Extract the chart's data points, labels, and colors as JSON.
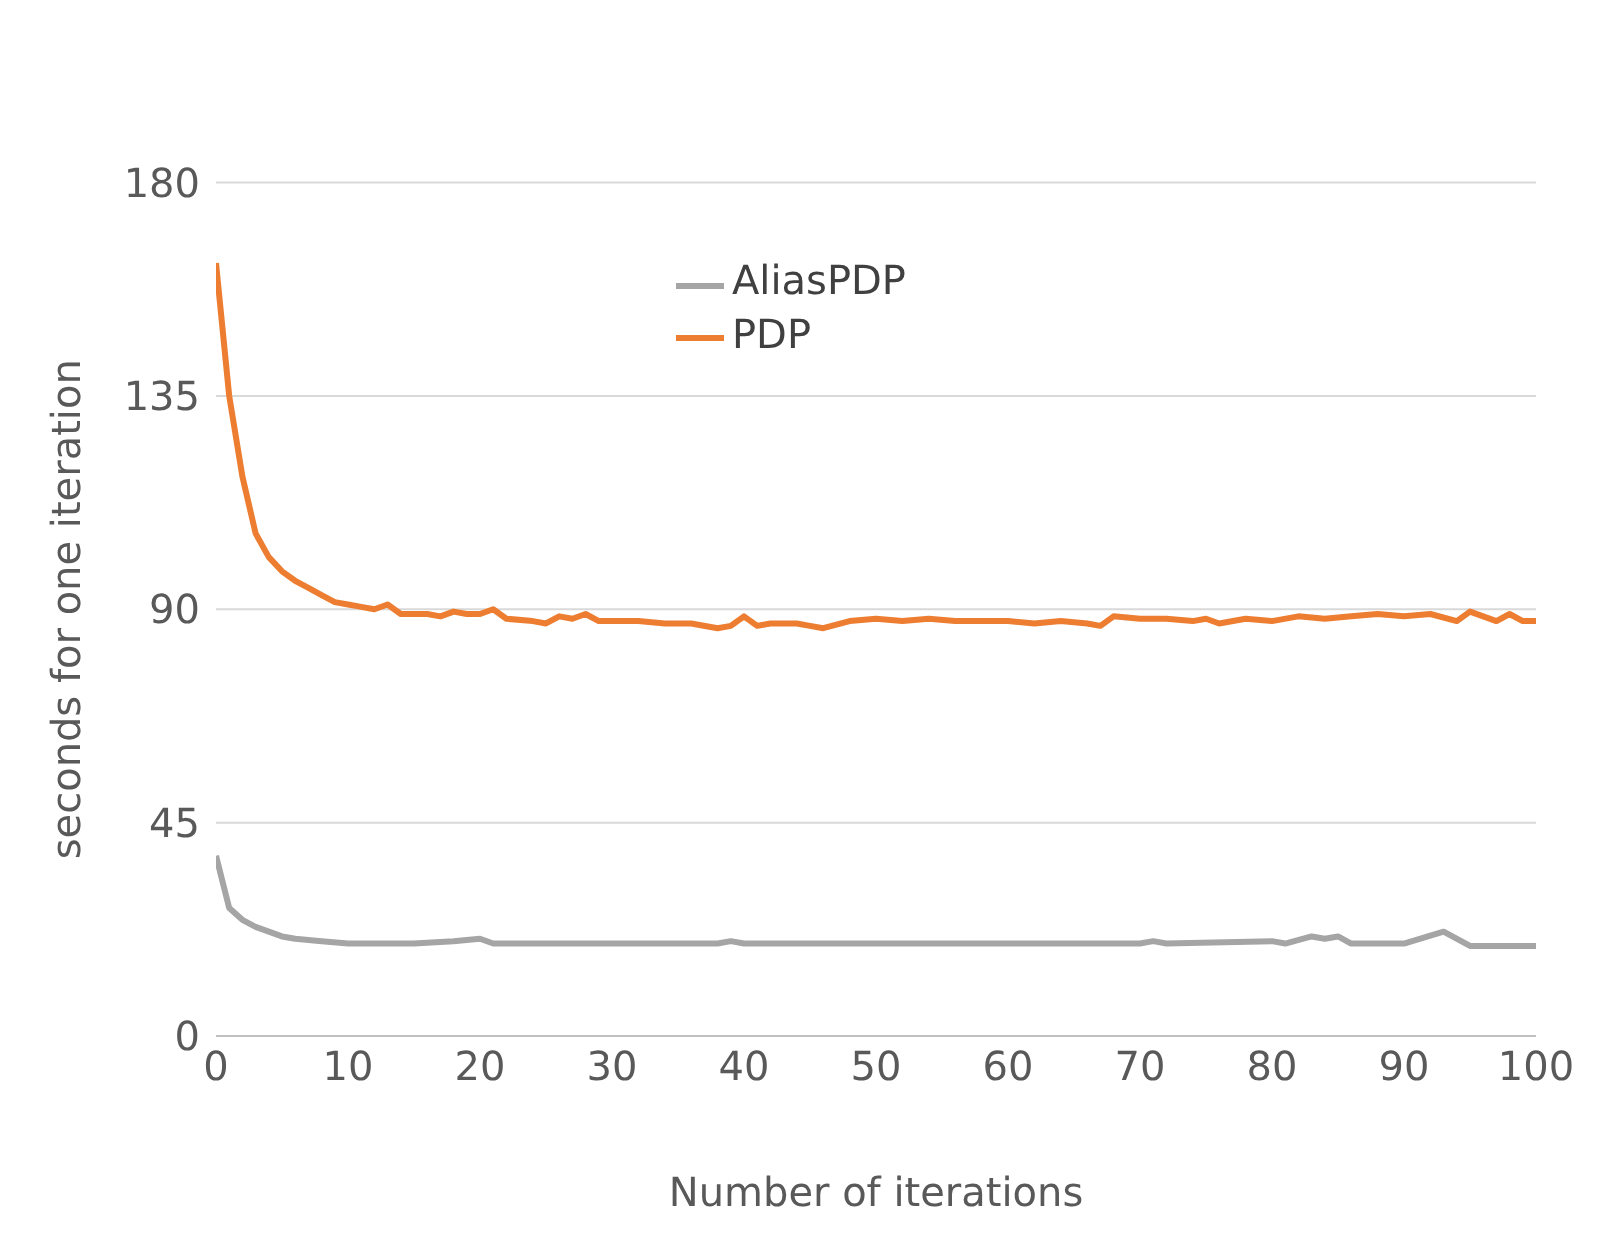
{
  "chart_data": {
    "type": "line",
    "xlabel": "Number of iterations",
    "ylabel": "seconds for one iteration",
    "xlim": [
      0,
      100
    ],
    "xticks": [
      0,
      10,
      20,
      30,
      40,
      50,
      60,
      70,
      80,
      90,
      100
    ],
    "ylim": [
      0,
      180
    ],
    "yticks": [
      0,
      45,
      90,
      135,
      180
    ],
    "grid": "y",
    "legend": "top",
    "marker": "none",
    "line_style": "solid",
    "series": [
      {
        "name": "PDP",
        "color": "#ed7d31",
        "x": [
          0,
          1,
          2,
          3,
          4,
          5,
          6,
          7,
          8,
          9,
          10,
          11,
          12,
          13,
          14,
          16,
          17,
          18,
          19,
          20,
          21,
          22,
          24,
          25,
          26,
          27,
          28,
          29,
          32,
          34,
          36,
          38,
          39,
          40,
          41,
          42,
          44,
          45,
          46,
          48,
          50,
          52,
          54,
          56,
          58,
          60,
          62,
          64,
          66,
          67,
          68,
          70,
          72,
          74,
          75,
          76,
          78,
          80,
          82,
          84,
          86,
          88,
          90,
          92,
          94,
          95,
          97,
          98,
          99,
          100
        ],
        "values": [
          163,
          135,
          118,
          106,
          101,
          98,
          96,
          94.5,
          93,
          91.5,
          91,
          90.5,
          90,
          91,
          89,
          89,
          88.5,
          89.5,
          89,
          89,
          90,
          88,
          87.5,
          87,
          88.5,
          88,
          89,
          87.5,
          87.5,
          87,
          87,
          86,
          86.5,
          88.5,
          86.5,
          87,
          87,
          86.5,
          86,
          87.5,
          88,
          87.5,
          88,
          87.5,
          87.5,
          87.5,
          87,
          87.5,
          87,
          86.5,
          88.5,
          88,
          88,
          87.5,
          88,
          87,
          88,
          87.5,
          88.5,
          88,
          88.5,
          89,
          88.5,
          89,
          87.5,
          89.5,
          87.5,
          89,
          87.5,
          87.5
        ]
      },
      {
        "name": "AliasPDP",
        "color": "#a5a5a5",
        "x": [
          0,
          1,
          2,
          3,
          4,
          5,
          6,
          8,
          10,
          15,
          18,
          20,
          21,
          30,
          38,
          39,
          40,
          60,
          70,
          71,
          72,
          80,
          81,
          83,
          84,
          85,
          86,
          90,
          93,
          95,
          100
        ],
        "values": [
          38,
          27,
          24.5,
          23,
          22,
          21,
          20.5,
          20,
          19.5,
          19.5,
          20,
          20.5,
          19.5,
          19.5,
          19.5,
          20,
          19.5,
          19.5,
          19.5,
          20,
          19.5,
          20,
          19.5,
          21,
          20.5,
          21,
          19.5,
          19.5,
          22,
          19,
          19
        ]
      }
    ]
  }
}
